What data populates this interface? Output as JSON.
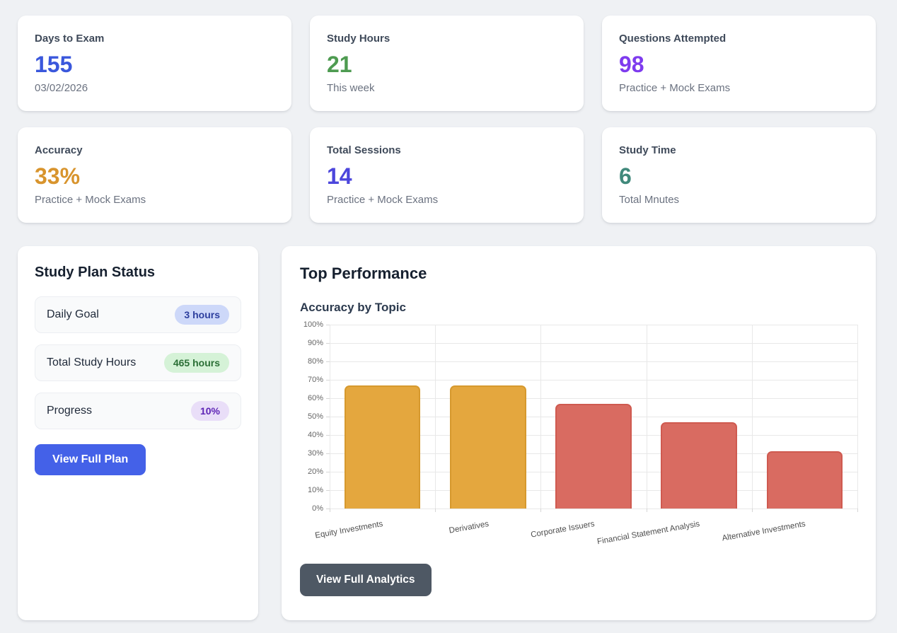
{
  "stats": [
    {
      "label": "Days to Exam",
      "value": "155",
      "sub": "03/02/2026",
      "color": "#3a57dc"
    },
    {
      "label": "Study Hours",
      "value": "21",
      "sub": "This week",
      "color": "#4e9b51"
    },
    {
      "label": "Questions Attempted",
      "value": "98",
      "sub": "Practice + Mock Exams",
      "color": "#7e3bee"
    },
    {
      "label": "Accuracy",
      "value": "33%",
      "sub": "Practice + Mock Exams",
      "color": "#d8942d"
    },
    {
      "label": "Total Sessions",
      "value": "14",
      "sub": "Practice + Mock Exams",
      "color": "#4c46dc"
    },
    {
      "label": "Study Time",
      "value": "6",
      "sub": "Total Mnutes",
      "color": "#40897b"
    }
  ],
  "study_plan": {
    "title": "Study Plan Status",
    "rows": [
      {
        "label": "Daily Goal",
        "badge": "3 hours",
        "badge_bg": "#cdd8f9",
        "badge_color": "#2d3f9e"
      },
      {
        "label": "Total Study Hours",
        "badge": "465 hours",
        "badge_bg": "#d5f2d7",
        "badge_color": "#2b6f36"
      },
      {
        "label": "Progress",
        "badge": "10%",
        "badge_bg": "#e9def8",
        "badge_color": "#5d23b5"
      }
    ],
    "button": {
      "label": "View Full Plan",
      "bg": "#4461e8"
    }
  },
  "performance": {
    "title": "Top Performance",
    "subtitle": "Accuracy by Topic",
    "button": {
      "label": "View Full Analytics",
      "bg": "#4e5864"
    }
  },
  "chart_data": {
    "type": "bar",
    "title": "Accuracy by Topic",
    "categories": [
      "Equity Investments",
      "Derivatives",
      "Corporate Issuers",
      "Financial Statement Analysis",
      "Alternative Investments"
    ],
    "values": [
      67,
      67,
      57,
      47,
      31
    ],
    "unit": "%",
    "xlabel": "",
    "ylabel": "",
    "ylim": [
      0,
      100
    ],
    "ytick_step": 10,
    "grid": true,
    "legend": false,
    "bar_colors": [
      {
        "fill": "#e4a73e",
        "border": "#d6992e"
      },
      {
        "fill": "#e4a73e",
        "border": "#d6992e"
      },
      {
        "fill": "#d96b61",
        "border": "#cf5a50"
      },
      {
        "fill": "#d96b61",
        "border": "#cf5a50"
      },
      {
        "fill": "#d96b61",
        "border": "#cf5a50"
      }
    ]
  }
}
